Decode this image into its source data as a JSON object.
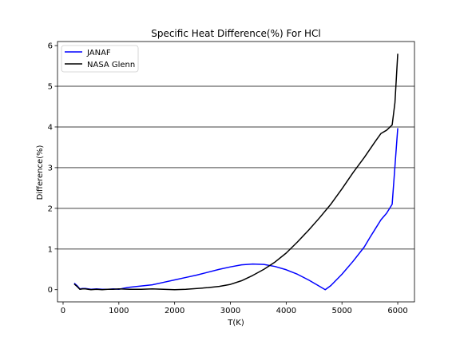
{
  "chart_data": {
    "type": "line",
    "title": "Specific Heat Difference(%) For HCl",
    "xlabel": "T(K)",
    "ylabel": "Difference(%)",
    "xlim": [
      -100,
      6300
    ],
    "ylim": [
      -0.3,
      6.1
    ],
    "xticks": [
      0,
      1000,
      2000,
      3000,
      4000,
      5000,
      6000
    ],
    "yticks": [
      0,
      1,
      2,
      3,
      4,
      5,
      6
    ],
    "grid": "horizontal lines at y = 1, 2, 3, 4, 5",
    "gridlines": [
      1,
      2,
      3,
      4,
      5
    ],
    "legend_position": "upper-left",
    "series": [
      {
        "name": "JANAF",
        "color": "#0000ff",
        "x": [
          200,
          250,
          300,
          350,
          400,
          450,
          500,
          600,
          700,
          800,
          900,
          1000,
          1100,
          1200,
          1400,
          1600,
          1800,
          2000,
          2200,
          2400,
          2600,
          2800,
          3000,
          3200,
          3400,
          3600,
          3800,
          4000,
          4200,
          4400,
          4600,
          4700,
          4800,
          5000,
          5200,
          5400,
          5500,
          5600,
          5700,
          5800,
          5900,
          6000
        ],
        "y": [
          0.16,
          0.1,
          0.02,
          0.03,
          0.03,
          0.02,
          0.01,
          0.02,
          0.01,
          0.01,
          0.02,
          0.01,
          0.04,
          0.06,
          0.09,
          0.12,
          0.18,
          0.24,
          0.3,
          0.36,
          0.43,
          0.5,
          0.56,
          0.61,
          0.63,
          0.62,
          0.57,
          0.49,
          0.38,
          0.24,
          0.08,
          0.0,
          0.1,
          0.38,
          0.7,
          1.05,
          1.28,
          1.5,
          1.72,
          1.88,
          2.1,
          3.97
        ]
      },
      {
        "name": "NASA Glenn",
        "color": "#000000",
        "x": [
          200,
          250,
          300,
          350,
          400,
          450,
          500,
          600,
          700,
          800,
          900,
          1000,
          1200,
          1400,
          1600,
          1800,
          2000,
          2200,
          2400,
          2600,
          2800,
          3000,
          3200,
          3400,
          3600,
          3800,
          4000,
          4200,
          4400,
          4600,
          4800,
          5000,
          5200,
          5400,
          5600,
          5700,
          5800,
          5900,
          5950,
          6000
        ],
        "y": [
          0.14,
          0.08,
          0.01,
          0.02,
          0.02,
          0.01,
          0.0,
          0.01,
          0.0,
          0.01,
          0.01,
          0.02,
          0.01,
          0.01,
          0.02,
          0.01,
          0.0,
          0.01,
          0.03,
          0.05,
          0.08,
          0.13,
          0.22,
          0.35,
          0.5,
          0.68,
          0.9,
          1.17,
          1.46,
          1.77,
          2.1,
          2.48,
          2.88,
          3.25,
          3.65,
          3.84,
          3.92,
          4.05,
          4.6,
          5.8
        ]
      }
    ]
  }
}
